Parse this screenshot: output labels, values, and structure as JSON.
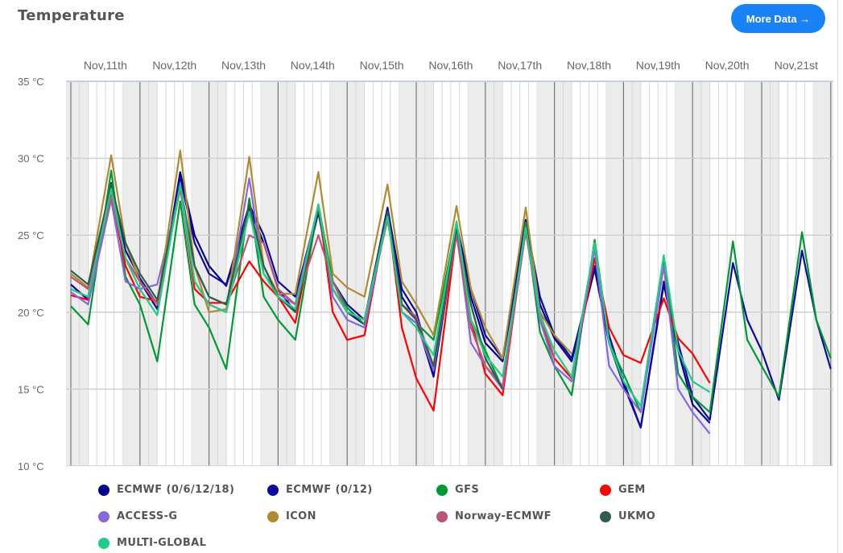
{
  "header": {
    "title": "Temperature",
    "more_button": "More Data →"
  },
  "chart_data": {
    "type": "line",
    "title": "Temperature",
    "xlabel": "",
    "ylabel": "",
    "x_unit": "hours since Nov 11 00:00",
    "ylim": [
      10,
      35
    ],
    "y_ticks": [
      "10 °C",
      "15 °C",
      "20 °C",
      "25 °C",
      "30 °C",
      "35 °C"
    ],
    "x_tick_labels": [
      "Nov,11th",
      "Nov,12th",
      "Nov,13th",
      "Nov,14th",
      "Nov,15th",
      "Nov,16th",
      "Nov,17th",
      "Nov,18th",
      "Nov,19th",
      "Nov,20th",
      "Nov,21st"
    ],
    "grid": true,
    "legend_placement": "bottom",
    "x": [
      0,
      6,
      14,
      19,
      24,
      30,
      38,
      43,
      48,
      54,
      62,
      67,
      72,
      78,
      86,
      91,
      96,
      102,
      110,
      115,
      120,
      126,
      134,
      139,
      144,
      150,
      158,
      163,
      168,
      174,
      182,
      187,
      192,
      198,
      206,
      211,
      216,
      222,
      230,
      235,
      240,
      246,
      254,
      259,
      264
    ],
    "series": [
      {
        "name": "ECMWF (0/6/12/18)",
        "color": "#00008b",
        "values": [
          21.8,
          20.8,
          28.2,
          23.5,
          22,
          20.2,
          29.1,
          25,
          23,
          21.7,
          26.8,
          24.5,
          21.5,
          20,
          26.5,
          21.5,
          20,
          19.2,
          26.5,
          21,
          19.5,
          15.8,
          25.3,
          21,
          18,
          16.8,
          25.8,
          20.5,
          18.3,
          16.8,
          22.8,
          18,
          15.3,
          12.5,
          21.8,
          17.5,
          14,
          12.8,
          null,
          null,
          null,
          null,
          null,
          null,
          null
        ]
      },
      {
        "name": "ECMWF (0/12)",
        "color": "#0a0a9e",
        "values": [
          21.5,
          21,
          28.4,
          24,
          22.2,
          20.5,
          28.8,
          24.5,
          22.5,
          21.8,
          27,
          25,
          22,
          21,
          26.8,
          22,
          20.5,
          19.5,
          26.8,
          21.5,
          20,
          16,
          25.7,
          21.5,
          18.5,
          17,
          26,
          21,
          18.5,
          17,
          23,
          18.5,
          15.5,
          12.5,
          22,
          18,
          14.5,
          13,
          23.2,
          19.5,
          17.5,
          14.3,
          24,
          19.5,
          16.3
        ]
      },
      {
        "name": "GFS",
        "color": "#009933",
        "values": [
          20.4,
          19.2,
          29.2,
          22.3,
          20.5,
          16.8,
          27.2,
          20.5,
          19,
          16.3,
          27.4,
          21,
          19.5,
          18.2,
          27,
          22,
          20.3,
          19.2,
          26.5,
          20,
          19.3,
          18.2,
          25.8,
          19.5,
          17.5,
          15,
          25.8,
          18.7,
          16.5,
          14.6,
          24.7,
          18,
          16,
          13.5,
          23.5,
          16,
          14.5,
          13.5,
          24.6,
          18.2,
          16.5,
          14.5,
          25.2,
          19.5,
          17
        ]
      },
      {
        "name": "GEM",
        "color": "#ff0000",
        "values": [
          21.1,
          20.8,
          27.6,
          23,
          21,
          20.7,
          28.2,
          21.5,
          20.6,
          20.6,
          23.3,
          22,
          21,
          19.3,
          27,
          20,
          18.2,
          18.5,
          26.5,
          19,
          15.7,
          13.6,
          25.2,
          19.5,
          16,
          14.6,
          25.5,
          19.5,
          17,
          15.7,
          23.5,
          19,
          17.2,
          16.7,
          20.9,
          18.3,
          17.3,
          15.4,
          null,
          null,
          null,
          null,
          null,
          null,
          null
        ]
      },
      {
        "name": "ACCESS-G",
        "color": "#8866dd",
        "values": [
          21.3,
          20.5,
          27.3,
          22,
          21.5,
          21.8,
          28,
          22,
          20.5,
          20,
          28.7,
          22.5,
          21.2,
          20.5,
          27,
          21,
          19.5,
          19,
          26.2,
          20,
          19.3,
          16.2,
          25.5,
          18,
          16.5,
          15,
          25.3,
          19.5,
          16.5,
          15.5,
          24.1,
          16.5,
          15,
          13.5,
          23,
          15,
          13.5,
          12.1,
          null,
          null,
          null,
          null,
          null,
          null,
          null
        ]
      },
      {
        "name": "ICON",
        "color": "#b08a30",
        "values": [
          22.5,
          21.6,
          30.2,
          24.5,
          22,
          20.5,
          30.5,
          23,
          20,
          20.2,
          30.1,
          23,
          21.2,
          21.2,
          29.1,
          22.5,
          21.6,
          21,
          28.3,
          22,
          20.5,
          18.5,
          26.9,
          21.5,
          19,
          17,
          26.8,
          20,
          18.5,
          17.3,
          null,
          null,
          null,
          null,
          null,
          null,
          null,
          null,
          null,
          null,
          null,
          null,
          null,
          null,
          null
        ]
      },
      {
        "name": "Norway-ECMWF",
        "color": "#bb5577",
        "values": [
          22.3,
          21.5,
          27.5,
          23.5,
          22,
          20.5,
          28,
          23,
          21,
          20.5,
          25,
          24.5,
          21.5,
          20.5,
          25,
          22,
          20,
          19.5,
          26,
          20.5,
          19.7,
          16.5,
          25,
          19,
          16.5,
          15.2,
          25.2,
          20,
          17,
          null,
          null,
          null,
          null,
          null,
          null,
          null,
          null,
          null,
          null,
          null,
          null,
          null,
          null,
          null,
          null
        ]
      },
      {
        "name": "UKMO",
        "color": "#2e5e4a",
        "values": [
          22.7,
          21.8,
          28.3,
          24.5,
          22.5,
          20.8,
          28.3,
          23,
          21,
          20.5,
          27,
          23,
          21,
          20,
          26.7,
          21.5,
          20,
          19.5,
          26.5,
          20.5,
          19.5,
          16.5,
          25.5,
          20.5,
          17,
          15,
          null,
          null,
          null,
          null,
          null,
          null,
          null,
          null,
          null,
          null,
          null,
          null,
          null,
          null,
          null,
          null,
          null,
          null,
          null
        ]
      },
      {
        "name": "MULTI-GLOBAL",
        "color": "#22cc88",
        "values": [
          21.5,
          21,
          28,
          23.5,
          21.5,
          19.8,
          28.3,
          22,
          20.5,
          20,
          26.5,
          22.5,
          21,
          20.2,
          27,
          21.5,
          20,
          19.5,
          26.2,
          20,
          19,
          17.2,
          25.9,
          19.5,
          17.2,
          15.8,
          25.5,
          19.8,
          17.5,
          15.8,
          24.5,
          18,
          15.5,
          13.9,
          23.7,
          17.5,
          15.5,
          14.8,
          null,
          null,
          null,
          null,
          null,
          null,
          null
        ]
      }
    ]
  }
}
